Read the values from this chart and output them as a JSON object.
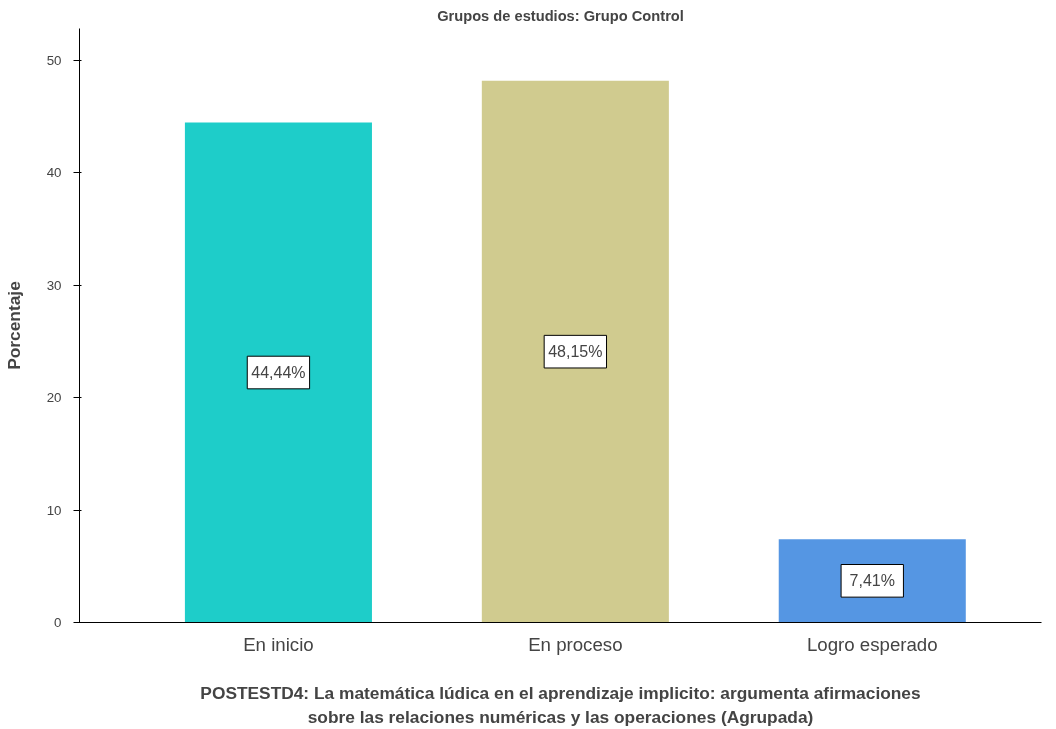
{
  "chart_data": {
    "type": "bar",
    "title": "Grupos de estudios: Grupo Control",
    "xlabel": "POSTESTD4: La matemática lúdica en el aprendizaje implicito: argumenta afirmaciones sobre las relaciones numéricas y las operaciones (Agrupada)",
    "ylabel": "Porcentaje",
    "categories": [
      "En inicio",
      "En proceso",
      "Logro esperado"
    ],
    "values": [
      44.44,
      48.15,
      7.41
    ],
    "colors": [
      "#1ecdc9",
      "#d0cb8f",
      "#5596e3"
    ],
    "value_labels": [
      "44,44%",
      "48,15%",
      "7,41%"
    ],
    "ylim": [
      0,
      52.8
    ],
    "yticks": [
      0,
      10,
      20,
      30,
      40,
      50
    ],
    "grid": false
  }
}
